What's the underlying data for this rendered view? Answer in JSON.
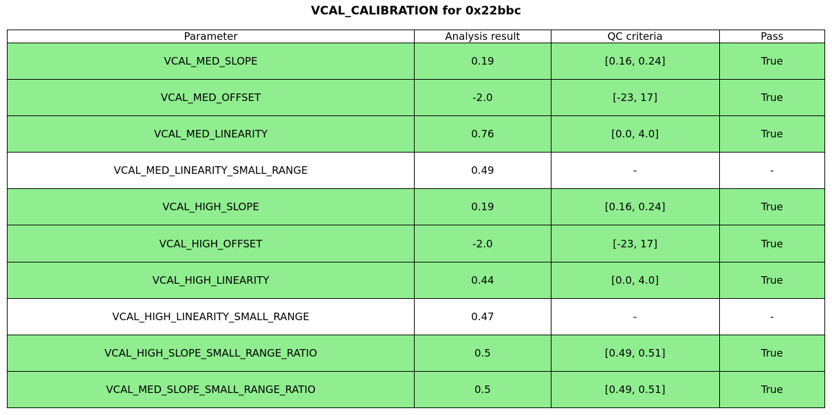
{
  "title": "VCAL_CALIBRATION for 0x22bbc",
  "colors": {
    "pass_row_green": "#90EE90",
    "neutral_row_white": "#ffffff",
    "border_black": "#000000"
  },
  "table": {
    "headers": [
      "Parameter",
      "Analysis result",
      "QC criteria",
      "Pass"
    ],
    "rows": [
      {
        "parameter": "VCAL_MED_SLOPE",
        "result": "0.19",
        "criteria": "[0.16, 0.24]",
        "pass": "True",
        "highlight": true
      },
      {
        "parameter": "VCAL_MED_OFFSET",
        "result": "-2.0",
        "criteria": "[-23, 17]",
        "pass": "True",
        "highlight": true
      },
      {
        "parameter": "VCAL_MED_LINEARITY",
        "result": "0.76",
        "criteria": "[0.0, 4.0]",
        "pass": "True",
        "highlight": true
      },
      {
        "parameter": "VCAL_MED_LINEARITY_SMALL_RANGE",
        "result": "0.49",
        "criteria": "-",
        "pass": "-",
        "highlight": false
      },
      {
        "parameter": "VCAL_HIGH_SLOPE",
        "result": "0.19",
        "criteria": "[0.16, 0.24]",
        "pass": "True",
        "highlight": true
      },
      {
        "parameter": "VCAL_HIGH_OFFSET",
        "result": "-2.0",
        "criteria": "[-23, 17]",
        "pass": "True",
        "highlight": true
      },
      {
        "parameter": "VCAL_HIGH_LINEARITY",
        "result": "0.44",
        "criteria": "[0.0, 4.0]",
        "pass": "True",
        "highlight": true
      },
      {
        "parameter": "VCAL_HIGH_LINEARITY_SMALL_RANGE",
        "result": "0.47",
        "criteria": "-",
        "pass": "-",
        "highlight": false
      },
      {
        "parameter": "VCAL_HIGH_SLOPE_SMALL_RANGE_RATIO",
        "result": "0.5",
        "criteria": "[0.49, 0.51]",
        "pass": "True",
        "highlight": true
      },
      {
        "parameter": "VCAL_MED_SLOPE_SMALL_RANGE_RATIO",
        "result": "0.5",
        "criteria": "[0.49, 0.51]",
        "pass": "True",
        "highlight": true
      }
    ]
  },
  "chart_data": {
    "type": "table",
    "title": "VCAL_CALIBRATION for 0x22bbc",
    "columns": [
      "Parameter",
      "Analysis result",
      "QC criteria",
      "Pass"
    ],
    "rows": [
      [
        "VCAL_MED_SLOPE",
        "0.19",
        "[0.16, 0.24]",
        "True"
      ],
      [
        "VCAL_MED_OFFSET",
        "-2.0",
        "[-23, 17]",
        "True"
      ],
      [
        "VCAL_MED_LINEARITY",
        "0.76",
        "[0.0, 4.0]",
        "True"
      ],
      [
        "VCAL_MED_LINEARITY_SMALL_RANGE",
        "0.49",
        "-",
        "-"
      ],
      [
        "VCAL_HIGH_SLOPE",
        "0.19",
        "[0.16, 0.24]",
        "True"
      ],
      [
        "VCAL_HIGH_OFFSET",
        "-2.0",
        "[-23, 17]",
        "True"
      ],
      [
        "VCAL_HIGH_LINEARITY",
        "0.44",
        "[0.0, 4.0]",
        "True"
      ],
      [
        "VCAL_HIGH_LINEARITY_SMALL_RANGE",
        "0.47",
        "-",
        "-"
      ],
      [
        "VCAL_HIGH_SLOPE_SMALL_RANGE_RATIO",
        "0.5",
        "[0.49, 0.51]",
        "True"
      ],
      [
        "VCAL_MED_SLOPE_SMALL_RANGE_RATIO",
        "0.5",
        "[0.49, 0.51]",
        "True"
      ]
    ],
    "row_highlight_passed": [
      true,
      true,
      true,
      false,
      true,
      true,
      true,
      false,
      true,
      true
    ],
    "layout": {
      "grid": true,
      "highlight_color": "#90EE90"
    }
  }
}
